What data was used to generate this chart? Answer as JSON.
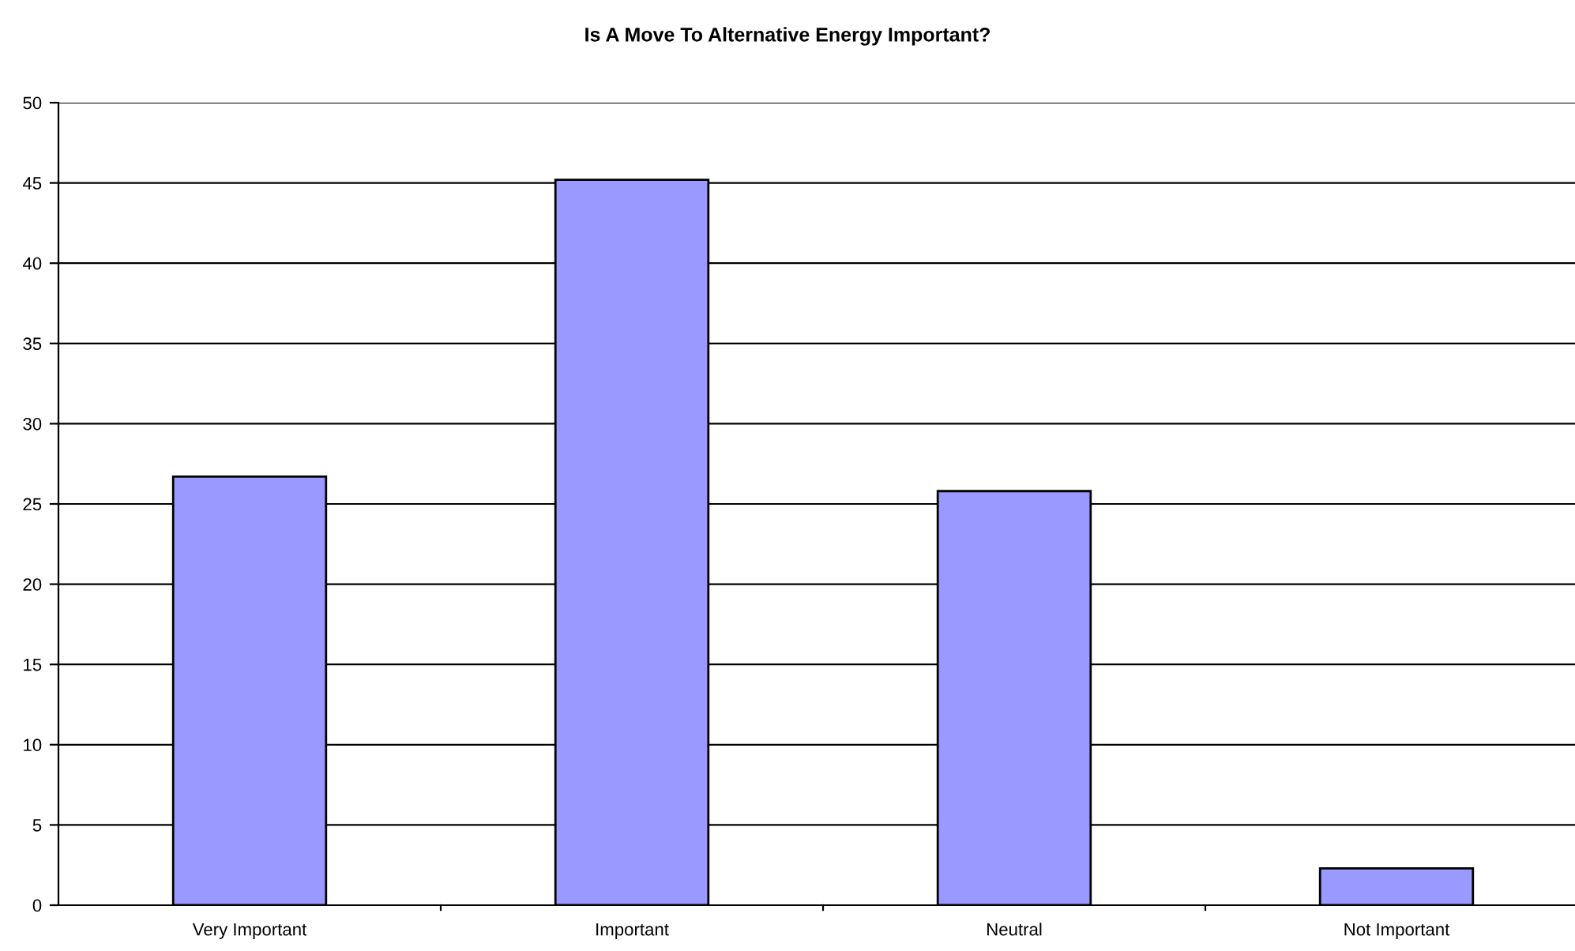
{
  "chart_data": {
    "type": "bar",
    "title": "Is A Move To Alternative Energy Important?",
    "categories": [
      "Very Important",
      "Important",
      "Neutral",
      "Not Important"
    ],
    "values": [
      26.7,
      45.2,
      25.8,
      2.3
    ],
    "color": "#9999ff",
    "ylim": [
      0,
      50
    ],
    "yticks": [
      0,
      5,
      10,
      15,
      20,
      25,
      30,
      35,
      40,
      45,
      50
    ],
    "grid": "y"
  }
}
